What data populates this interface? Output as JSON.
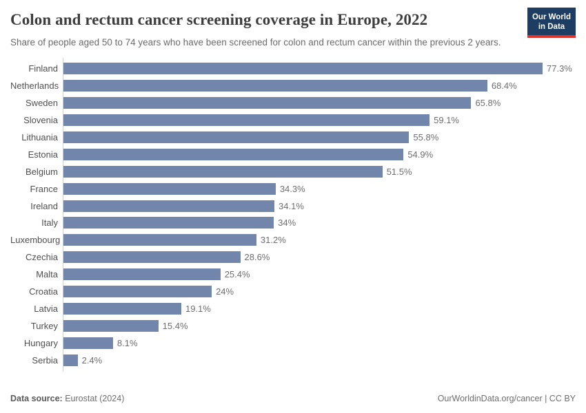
{
  "header": {
    "title": "Colon and rectum cancer screening coverage in Europe, 2022",
    "subtitle": "Share of people aged 50 to 74 years who have been screened for colon and rectum cancer within the previous 2 years.",
    "logo": {
      "line1": "Our World",
      "line2": "in Data",
      "background_color": "#1d3d63",
      "accent_color": "#e0322e"
    }
  },
  "chart_data": {
    "type": "bar",
    "orientation": "horizontal",
    "title": "Colon and rectum cancer screening coverage in Europe, 2022",
    "subtitle": "Share of people aged 50 to 74 years who have been screened for colon and rectum cancer within the previous 2 years.",
    "unit": "%",
    "grid": false,
    "xlim": [
      0,
      80
    ],
    "bar_color": "#7286ac",
    "categories": [
      "Finland",
      "Netherlands",
      "Sweden",
      "Slovenia",
      "Lithuania",
      "Estonia",
      "Belgium",
      "France",
      "Ireland",
      "Italy",
      "Luxembourg",
      "Czechia",
      "Malta",
      "Croatia",
      "Latvia",
      "Turkey",
      "Hungary",
      "Serbia"
    ],
    "values": [
      77.3,
      68.4,
      65.8,
      59.1,
      55.8,
      54.9,
      51.5,
      34.3,
      34.1,
      34,
      31.2,
      28.6,
      25.4,
      24,
      19.1,
      15.4,
      8.1,
      2.4
    ],
    "labels": [
      "77.3%",
      "68.4%",
      "65.8%",
      "59.1%",
      "55.8%",
      "54.9%",
      "51.5%",
      "34.3%",
      "34.1%",
      "34%",
      "31.2%",
      "28.6%",
      "25.4%",
      "24%",
      "19.1%",
      "15.4%",
      "8.1%",
      "2.4%"
    ]
  },
  "footer": {
    "source_label": "Data source:",
    "source_value": " Eurostat (2024)",
    "attribution": "OurWorldinData.org/cancer | CC BY"
  }
}
